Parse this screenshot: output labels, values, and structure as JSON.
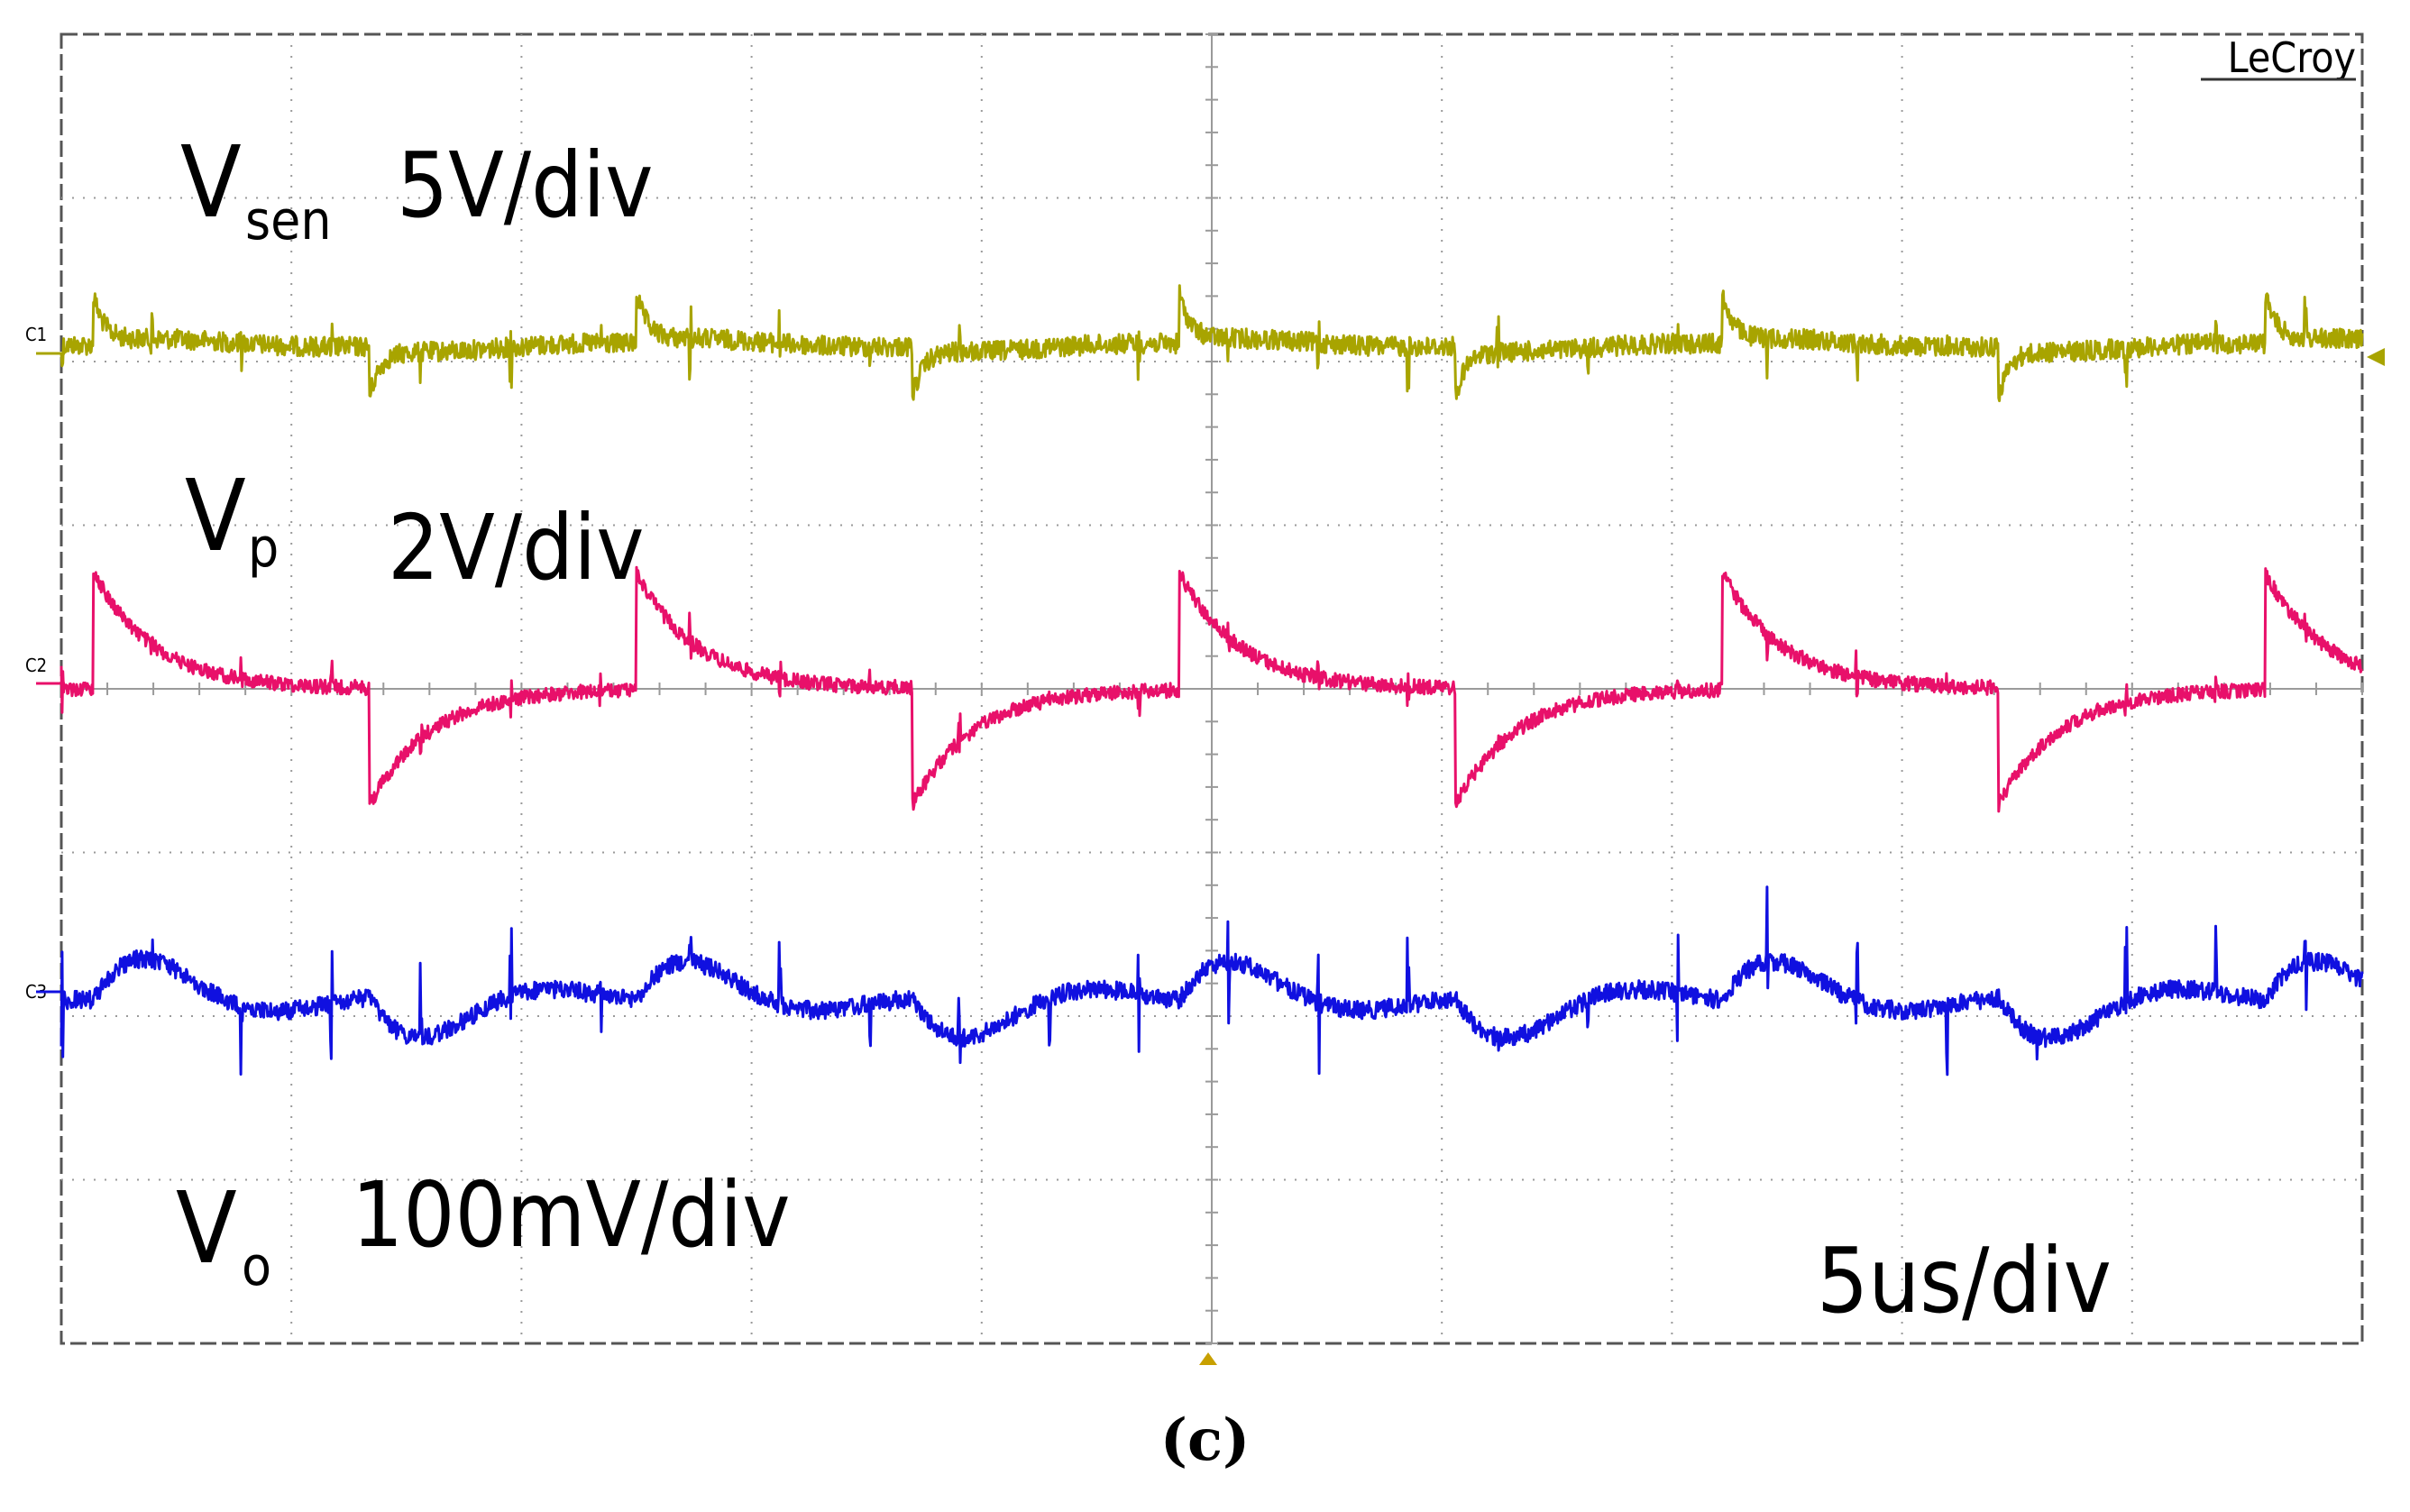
{
  "brand": "LeCroy",
  "caption": "(c)",
  "chart_data": {
    "type": "line",
    "title": "",
    "grid": true,
    "x_divisions": 10,
    "y_divisions": 8,
    "timebase": "5us/div",
    "x_range_us": [
      0,
      50
    ],
    "period_us": 11.8,
    "labels": {
      "c1_name": "V",
      "c1_sub": "sen",
      "c1_scale": "5V/div",
      "c2_name": "V",
      "c2_sub": "p",
      "c2_scale": "2V/div",
      "c3_name": "V",
      "c3_sub": "o",
      "c3_scale": "100mV/div",
      "timebase": "5us/div"
    },
    "series": [
      {
        "name": "C1",
        "quantity": "Vsen",
        "scale": "5V/div",
        "color": "#a8a400",
        "baseline_div": 6.1,
        "events": [
          {
            "t": 0.7,
            "type": "rise"
          },
          {
            "t": 6.7,
            "type": "fall"
          },
          {
            "t": 12.5,
            "type": "rise"
          },
          {
            "t": 18.5,
            "type": "fall"
          },
          {
            "t": 24.3,
            "type": "rise"
          },
          {
            "t": 30.3,
            "type": "fall"
          },
          {
            "t": 36.1,
            "type": "rise"
          },
          {
            "t": 42.1,
            "type": "fall"
          },
          {
            "t": 47.9,
            "type": "rise"
          }
        ]
      },
      {
        "name": "C2",
        "quantity": "Vp",
        "scale": "2V/div",
        "color": "#e8106a",
        "baseline_div": 4.0,
        "events": [
          {
            "t": 0.7,
            "type": "rise"
          },
          {
            "t": 6.7,
            "type": "fall"
          },
          {
            "t": 12.5,
            "type": "rise"
          },
          {
            "t": 18.5,
            "type": "fall"
          },
          {
            "t": 24.3,
            "type": "rise"
          },
          {
            "t": 30.3,
            "type": "fall"
          },
          {
            "t": 36.1,
            "type": "rise"
          },
          {
            "t": 42.1,
            "type": "fall"
          },
          {
            "t": 47.9,
            "type": "rise"
          }
        ]
      },
      {
        "name": "C3",
        "quantity": "Vo",
        "scale": "100mV/div",
        "color": "#1010e0",
        "baseline_div": 2.1,
        "events": [
          {
            "t": 0.7,
            "type": "rise"
          },
          {
            "t": 6.7,
            "type": "fall"
          },
          {
            "t": 12.5,
            "type": "rise"
          },
          {
            "t": 18.5,
            "type": "fall"
          },
          {
            "t": 24.3,
            "type": "rise"
          },
          {
            "t": 30.3,
            "type": "fall"
          },
          {
            "t": 36.1,
            "type": "rise"
          },
          {
            "t": 42.1,
            "type": "fall"
          },
          {
            "t": 47.9,
            "type": "rise"
          }
        ]
      }
    ],
    "colors": {
      "grid": "#9a9a9a",
      "frame": "#555555",
      "marker": "#c8a000"
    }
  }
}
